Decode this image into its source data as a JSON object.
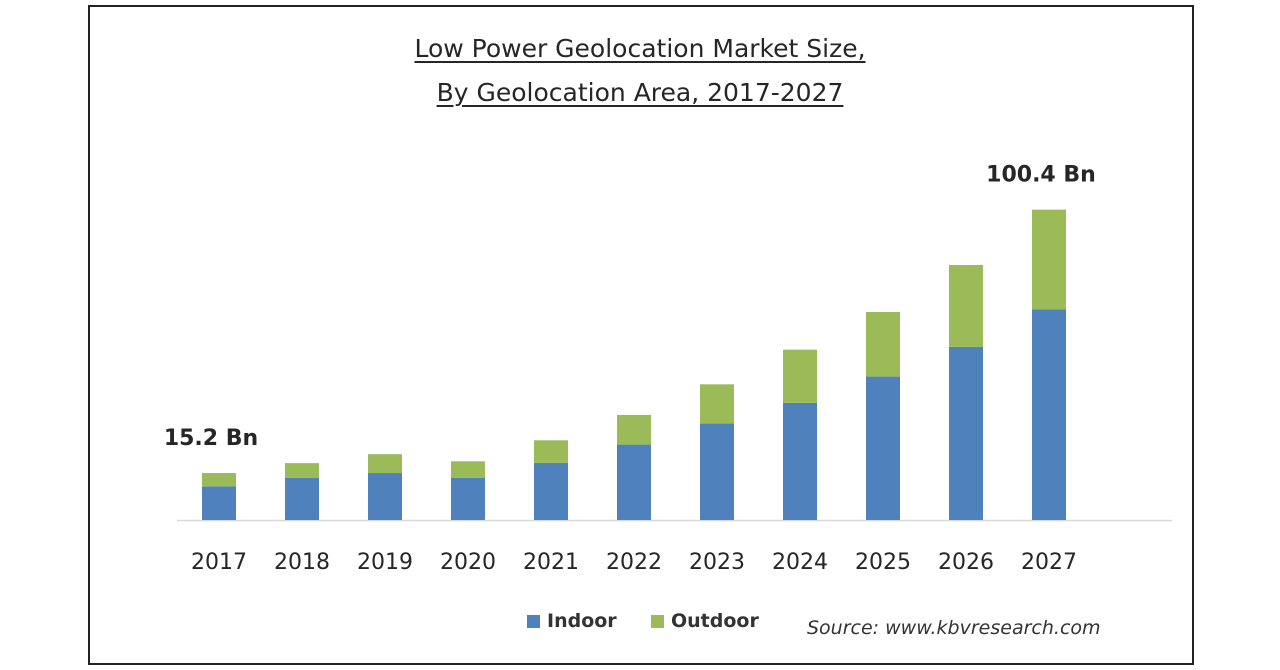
{
  "chart_data": {
    "type": "bar",
    "stacked": true,
    "title_line1": "Low Power Geolocation Market Size,",
    "title_line2": "By Geolocation Area, 2017-2027",
    "categories": [
      "2017",
      "2018",
      "2019",
      "2020",
      "2021",
      "2022",
      "2023",
      "2024",
      "2025",
      "2026",
      "2027"
    ],
    "series": [
      {
        "name": "Indoor",
        "color": "#4f81bd",
        "values": [
          10.9,
          13.6,
          15.2,
          13.6,
          18.5,
          24.4,
          31.2,
          37.9,
          46.4,
          56.0,
          68.2
        ]
      },
      {
        "name": "Outdoor",
        "color": "#9bbb59",
        "values": [
          4.3,
          4.8,
          6.1,
          5.4,
          7.3,
          9.6,
          12.7,
          17.2,
          20.9,
          26.5,
          32.2
        ]
      }
    ],
    "ylim": [
      0,
      110
    ],
    "annotations": [
      {
        "category": "2017",
        "text": "15.2 Bn"
      },
      {
        "category": "2027",
        "text": "100.4 Bn"
      }
    ],
    "legend_position": "bottom-center",
    "grid": false,
    "xlabel": "",
    "ylabel": ""
  },
  "source": "Source: www.kbvresearch.com"
}
